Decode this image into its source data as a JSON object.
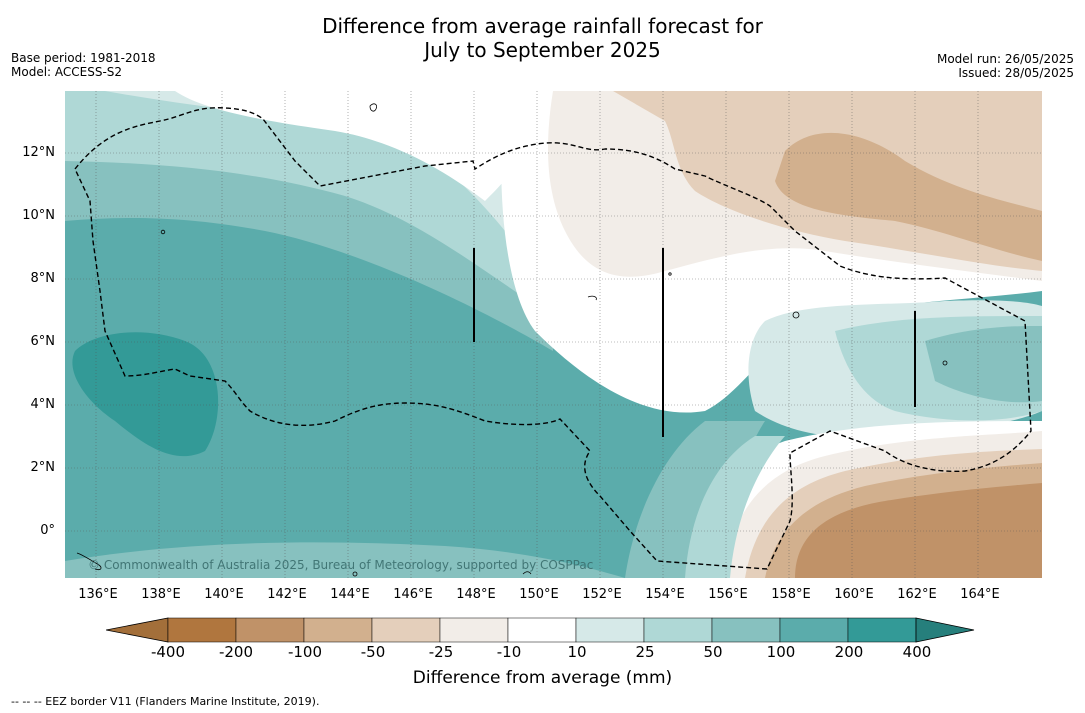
{
  "title_line1": "Difference from average rainfall forecast for",
  "title_line2": "July to September 2025",
  "left_info": {
    "base_period": "Base period: 1981-2018",
    "model": "Model: ACCESS-S2"
  },
  "right_info": {
    "model_run": "Model run: 26/05/2025",
    "issued": "Issued: 28/05/2025"
  },
  "copyright": "© Commonwealth of Australia 2025, Bureau of Meteorology, supported by COSPPac",
  "lat_labels": [
    "12°N",
    "10°N",
    "8°N",
    "6°N",
    "4°N",
    "2°N",
    "0°"
  ],
  "lon_labels": [
    "136°E",
    "138°E",
    "140°E",
    "142°E",
    "144°E",
    "146°E",
    "148°E",
    "150°E",
    "152°E",
    "154°E",
    "156°E",
    "158°E",
    "160°E",
    "162°E",
    "164°E"
  ],
  "colorbar": {
    "ticks": [
      "-400",
      "-200",
      "-100",
      "-50",
      "-25",
      "-10",
      "10",
      "25",
      "50",
      "100",
      "200",
      "400"
    ],
    "colors": [
      "#a36f3a",
      "#b0763e",
      "#c09268",
      "#d2b08e",
      "#e4cfbb",
      "#f2ede8",
      "#ffffff",
      "#d6e9e8",
      "#afd8d6",
      "#87c1bf",
      "#5bacab",
      "#339a97",
      "#267f7c"
    ],
    "title": "Difference from average (mm)"
  },
  "footnote": "--  --  -- EEZ border V11 (Flanders Marine Institute, 2019)."
}
